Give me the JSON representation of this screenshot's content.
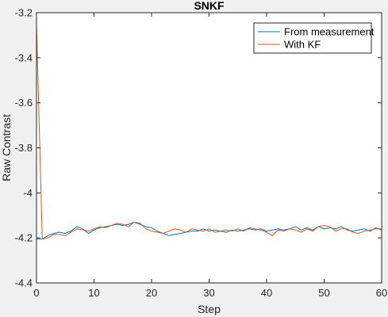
{
  "chart_data": {
    "type": "line",
    "title": "SNKF",
    "xlabel": "Step",
    "ylabel": "Raw Contrast",
    "xlim": [
      0,
      60
    ],
    "ylim": [
      -4.4,
      -3.2
    ],
    "xticks": [
      0,
      10,
      20,
      30,
      40,
      50,
      60
    ],
    "yticks": [
      -4.4,
      -4.2,
      -4,
      -3.8,
      -3.6,
      -3.4,
      -3.2
    ],
    "xtick_labels": [
      "0",
      "10",
      "20",
      "30",
      "40",
      "50",
      "60"
    ],
    "ytick_labels": [
      "-4.4",
      "-4.2",
      "-4",
      "-3.8",
      "-3.6",
      "-3.4",
      "-3.2"
    ],
    "grid": false,
    "legend_position": "top-right",
    "colors": {
      "background": "#f0f0f0",
      "axes": "#ffffff",
      "axis_line": "#262626"
    },
    "series": [
      {
        "name": "From measurement",
        "color": "#0072BD",
        "x": [
          0,
          1,
          2,
          3,
          4,
          5,
          6,
          7,
          8,
          9,
          10,
          11,
          12,
          13,
          14,
          15,
          16,
          17,
          18,
          19,
          20,
          21,
          22,
          23,
          24,
          25,
          26,
          27,
          28,
          29,
          30,
          31,
          32,
          33,
          34,
          35,
          36,
          37,
          38,
          39,
          40,
          41,
          42,
          43,
          44,
          45,
          46,
          47,
          48,
          49,
          50,
          51,
          52,
          53,
          54,
          55,
          56,
          57,
          58,
          59,
          60
        ],
        "values": [
          -4.205,
          -4.205,
          -4.19,
          -4.18,
          -4.175,
          -4.18,
          -4.17,
          -4.15,
          -4.16,
          -4.18,
          -4.165,
          -4.155,
          -4.15,
          -4.145,
          -4.14,
          -4.145,
          -4.14,
          -4.13,
          -4.14,
          -4.15,
          -4.155,
          -4.17,
          -4.18,
          -4.19,
          -4.185,
          -4.18,
          -4.175,
          -4.17,
          -4.17,
          -4.16,
          -4.17,
          -4.165,
          -4.17,
          -4.175,
          -4.165,
          -4.17,
          -4.165,
          -4.16,
          -4.165,
          -4.16,
          -4.17,
          -4.165,
          -4.16,
          -4.165,
          -4.16,
          -4.15,
          -4.165,
          -4.155,
          -4.165,
          -4.15,
          -4.16,
          -4.155,
          -4.16,
          -4.15,
          -4.165,
          -4.17,
          -4.165,
          -4.16,
          -4.17,
          -4.155,
          -4.165
        ]
      },
      {
        "name": "With KF",
        "color": "#D95319",
        "x": [
          0,
          1,
          2,
          3,
          4,
          5,
          6,
          7,
          8,
          9,
          10,
          11,
          12,
          13,
          14,
          15,
          16,
          17,
          18,
          19,
          20,
          21,
          22,
          23,
          24,
          25,
          26,
          27,
          28,
          29,
          30,
          31,
          32,
          33,
          34,
          35,
          36,
          37,
          38,
          39,
          40,
          41,
          42,
          43,
          44,
          45,
          46,
          47,
          48,
          49,
          50,
          51,
          52,
          53,
          54,
          55,
          56,
          57,
          58,
          59,
          60
        ],
        "values": [
          -3.25,
          -4.205,
          -4.2,
          -4.185,
          -4.185,
          -4.19,
          -4.175,
          -4.16,
          -4.165,
          -4.17,
          -4.16,
          -4.15,
          -4.155,
          -4.145,
          -4.135,
          -4.14,
          -4.15,
          -4.13,
          -4.135,
          -4.16,
          -4.17,
          -4.175,
          -4.18,
          -4.17,
          -4.16,
          -4.165,
          -4.175,
          -4.16,
          -4.165,
          -4.17,
          -4.16,
          -4.175,
          -4.17,
          -4.165,
          -4.17,
          -4.16,
          -4.17,
          -4.155,
          -4.16,
          -4.165,
          -4.175,
          -4.19,
          -4.165,
          -4.17,
          -4.16,
          -4.165,
          -4.175,
          -4.16,
          -4.17,
          -4.15,
          -4.145,
          -4.15,
          -4.17,
          -4.16,
          -4.16,
          -4.175,
          -4.18,
          -4.17,
          -4.165,
          -4.16,
          -4.16
        ]
      }
    ]
  }
}
